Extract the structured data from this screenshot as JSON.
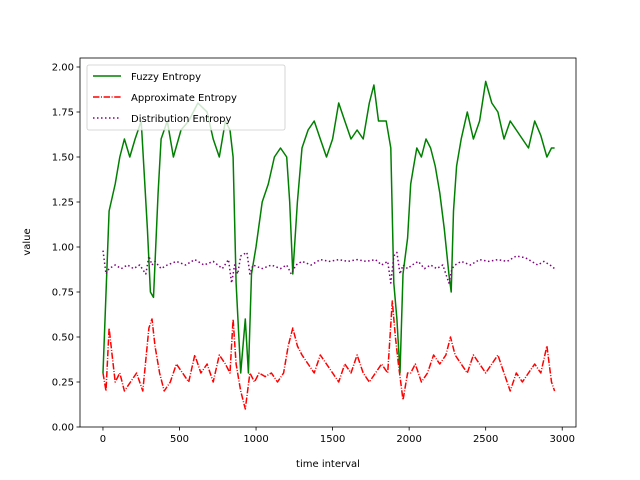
{
  "chart_data": {
    "type": "line",
    "title": "",
    "xlabel": "time interval",
    "ylabel": "value",
    "xlim": [
      -150,
      3090
    ],
    "ylim": [
      0.0,
      2.05
    ],
    "xticks": [
      0,
      500,
      1000,
      1500,
      2000,
      2500,
      3000
    ],
    "xtick_labels": [
      "0",
      "500",
      "1000",
      "1500",
      "2000",
      "2500",
      "3000"
    ],
    "yticks": [
      0.0,
      0.25,
      0.5,
      0.75,
      1.0,
      1.25,
      1.5,
      1.75,
      2.0
    ],
    "ytick_labels": [
      "0.00",
      "0.25",
      "0.50",
      "0.75",
      "1.00",
      "1.25",
      "1.50",
      "1.75",
      "2.00"
    ],
    "grid": false,
    "legend_position": "top-left",
    "series": [
      {
        "name": "Fuzzy Entropy",
        "color": "#008000",
        "style": "solid",
        "x": [
          0,
          40,
          80,
          110,
          140,
          175,
          210,
          250,
          290,
          310,
          330,
          360,
          380,
          420,
          460,
          510,
          560,
          620,
          680,
          720,
          760,
          800,
          830,
          850,
          870,
          900,
          930,
          950,
          970,
          1000,
          1040,
          1080,
          1120,
          1160,
          1200,
          1220,
          1240,
          1270,
          1300,
          1340,
          1380,
          1420,
          1460,
          1500,
          1540,
          1580,
          1620,
          1660,
          1700,
          1740,
          1770,
          1800,
          1850,
          1880,
          1900,
          1920,
          1940,
          1960,
          1990,
          2010,
          2030,
          2050,
          2080,
          2110,
          2140,
          2170,
          2200,
          2230,
          2260,
          2275,
          2290,
          2310,
          2340,
          2380,
          2420,
          2460,
          2500,
          2540,
          2580,
          2620,
          2660,
          2700,
          2740,
          2780,
          2820,
          2860,
          2900,
          2930,
          2950
        ],
        "y": [
          0.3,
          1.2,
          1.35,
          1.5,
          1.6,
          1.5,
          1.6,
          1.7,
          1.1,
          0.75,
          0.72,
          1.3,
          1.6,
          1.7,
          1.5,
          1.65,
          1.7,
          1.8,
          1.75,
          1.6,
          1.5,
          1.7,
          1.65,
          1.5,
          0.8,
          0.3,
          0.6,
          0.3,
          0.85,
          1.0,
          1.25,
          1.35,
          1.5,
          1.55,
          1.5,
          1.25,
          0.85,
          1.25,
          1.55,
          1.65,
          1.7,
          1.6,
          1.5,
          1.6,
          1.8,
          1.7,
          1.6,
          1.65,
          1.6,
          1.8,
          1.9,
          1.7,
          1.7,
          1.55,
          0.8,
          0.6,
          0.3,
          0.85,
          1.05,
          1.35,
          1.45,
          1.55,
          1.5,
          1.6,
          1.55,
          1.45,
          1.3,
          1.1,
          0.85,
          0.75,
          1.2,
          1.45,
          1.6,
          1.75,
          1.6,
          1.7,
          1.92,
          1.8,
          1.75,
          1.6,
          1.7,
          1.65,
          1.6,
          1.55,
          1.7,
          1.62,
          1.5,
          1.55,
          1.55
        ]
      },
      {
        "name": "Approximate Entropy",
        "color": "#ff0000",
        "style": "dashdot",
        "x": [
          0,
          20,
          40,
          60,
          80,
          110,
          140,
          180,
          220,
          260,
          300,
          320,
          340,
          370,
          400,
          440,
          480,
          520,
          560,
          600,
          640,
          680,
          720,
          760,
          800,
          830,
          850,
          870,
          900,
          930,
          960,
          990,
          1020,
          1060,
          1100,
          1140,
          1180,
          1210,
          1240,
          1270,
          1300,
          1340,
          1380,
          1420,
          1460,
          1500,
          1540,
          1580,
          1620,
          1660,
          1700,
          1740,
          1780,
          1820,
          1860,
          1890,
          1910,
          1930,
          1960,
          1990,
          2010,
          2040,
          2080,
          2120,
          2160,
          2200,
          2240,
          2270,
          2300,
          2340,
          2380,
          2420,
          2460,
          2500,
          2540,
          2580,
          2620,
          2660,
          2700,
          2740,
          2780,
          2820,
          2860,
          2900,
          2930,
          2950
        ],
        "y": [
          0.3,
          0.2,
          0.55,
          0.4,
          0.25,
          0.3,
          0.2,
          0.25,
          0.3,
          0.2,
          0.55,
          0.6,
          0.45,
          0.3,
          0.2,
          0.25,
          0.35,
          0.3,
          0.25,
          0.4,
          0.3,
          0.35,
          0.25,
          0.4,
          0.35,
          0.3,
          0.6,
          0.35,
          0.2,
          0.1,
          0.3,
          0.25,
          0.3,
          0.28,
          0.3,
          0.25,
          0.3,
          0.45,
          0.55,
          0.45,
          0.4,
          0.35,
          0.3,
          0.4,
          0.35,
          0.3,
          0.25,
          0.35,
          0.3,
          0.4,
          0.3,
          0.25,
          0.3,
          0.35,
          0.3,
          0.7,
          0.5,
          0.35,
          0.15,
          0.3,
          0.3,
          0.35,
          0.25,
          0.3,
          0.4,
          0.35,
          0.4,
          0.5,
          0.4,
          0.35,
          0.3,
          0.4,
          0.35,
          0.3,
          0.35,
          0.4,
          0.3,
          0.2,
          0.3,
          0.25,
          0.3,
          0.35,
          0.3,
          0.45,
          0.25,
          0.2
        ]
      },
      {
        "name": "Distribution Entropy",
        "color": "#800080",
        "style": "dotted",
        "x": [
          0,
          20,
          40,
          80,
          120,
          160,
          200,
          240,
          280,
          300,
          320,
          340,
          380,
          420,
          480,
          540,
          600,
          660,
          720,
          780,
          820,
          840,
          860,
          880,
          900,
          940,
          960,
          980,
          1040,
          1100,
          1160,
          1200,
          1230,
          1260,
          1300,
          1360,
          1420,
          1480,
          1540,
          1600,
          1660,
          1720,
          1780,
          1820,
          1860,
          1880,
          1900,
          1920,
          1940,
          1960,
          1990,
          2020,
          2060,
          2100,
          2140,
          2180,
          2220,
          2260,
          2280,
          2300,
          2340,
          2400,
          2460,
          2520,
          2580,
          2640,
          2700,
          2760,
          2800,
          2840,
          2880,
          2920,
          2950
        ],
        "y": [
          0.98,
          0.85,
          0.88,
          0.9,
          0.88,
          0.9,
          0.88,
          0.9,
          0.85,
          0.95,
          0.9,
          0.92,
          0.88,
          0.9,
          0.92,
          0.9,
          0.93,
          0.9,
          0.92,
          0.88,
          0.93,
          0.8,
          0.9,
          0.85,
          0.95,
          0.97,
          0.85,
          0.9,
          0.88,
          0.9,
          0.88,
          0.9,
          0.85,
          0.9,
          0.92,
          0.9,
          0.93,
          0.92,
          0.93,
          0.92,
          0.93,
          0.92,
          0.93,
          0.9,
          0.92,
          0.8,
          0.95,
          0.97,
          0.85,
          0.9,
          0.88,
          0.9,
          0.92,
          0.88,
          0.9,
          0.88,
          0.9,
          0.8,
          0.88,
          0.9,
          0.92,
          0.9,
          0.93,
          0.92,
          0.93,
          0.92,
          0.95,
          0.94,
          0.92,
          0.9,
          0.92,
          0.9,
          0.88
        ]
      }
    ]
  }
}
